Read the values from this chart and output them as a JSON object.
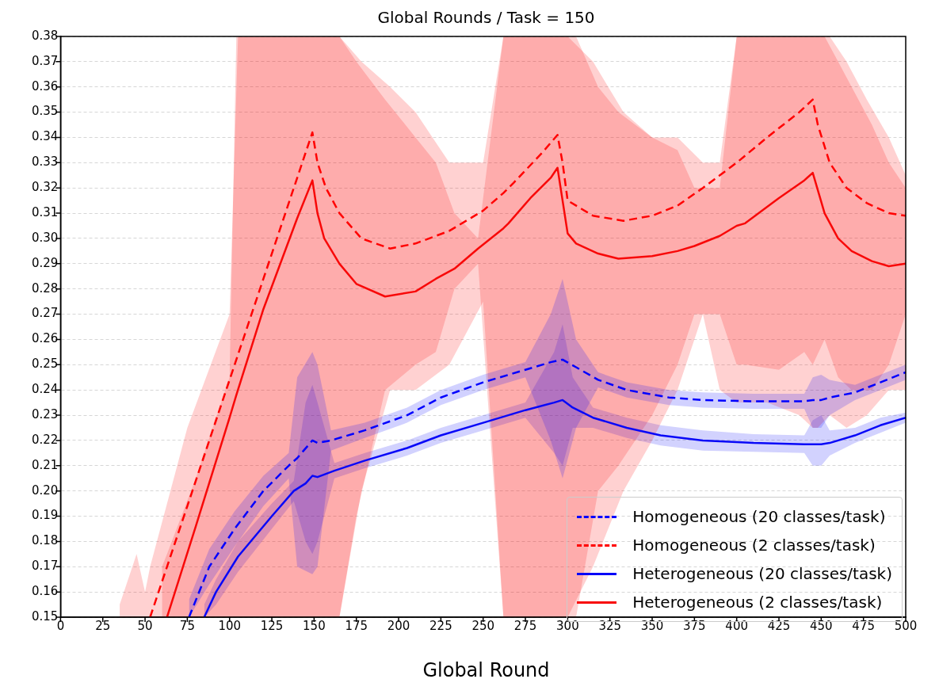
{
  "chart_data": {
    "type": "line",
    "title": "Global Rounds / Task = 150",
    "xlabel": "Global Round",
    "xlim": [
      0,
      500
    ],
    "xticks": [
      0,
      25,
      50,
      75,
      100,
      125,
      150,
      175,
      200,
      225,
      250,
      275,
      300,
      325,
      350,
      375,
      400,
      425,
      450,
      475,
      500
    ],
    "ylim": [
      0.15,
      0.38
    ],
    "yticks": [
      0.15,
      0.16,
      0.17,
      0.18,
      0.19,
      {
        "value": 0.2,
        "label": "0.20"
      },
      0.21,
      0.22,
      0.23,
      0.24,
      0.25,
      0.26,
      0.27,
      0.28,
      0.29,
      {
        "value": 0.3,
        "label": "0.30"
      },
      0.31,
      0.32,
      0.33,
      0.34,
      0.35,
      0.36,
      0.37,
      0.38
    ],
    "grid": "y",
    "legend": "bottom right",
    "marker": "none",
    "series": [
      {
        "name": "Homogeneous (20 classes/task)",
        "color": "#0000ff",
        "line_style": "dashed",
        "x": [
          76,
          88,
          103,
          120,
          135,
          140,
          149,
          152,
          160,
          180,
          205,
          225,
          250,
          275,
          290,
          297,
          305,
          318,
          335,
          360,
          380,
          410,
          440,
          445,
          450,
          455,
          470,
          485,
          500
        ],
        "values": [
          0.15,
          0.17,
          0.185,
          0.2,
          0.21,
          0.213,
          0.22,
          0.219,
          0.22,
          0.224,
          0.23,
          0.237,
          0.243,
          0.248,
          0.251,
          0.252,
          0.249,
          0.244,
          0.24,
          0.237,
          0.236,
          0.2355,
          0.2355,
          0.236,
          0.236,
          0.237,
          0.239,
          0.243,
          0.247
        ],
        "lower": [
          0.15,
          0.163,
          0.178,
          0.194,
          0.205,
          0.17,
          0.167,
          0.17,
          0.216,
          0.221,
          0.227,
          0.234,
          0.24,
          0.245,
          0.22,
          0.205,
          0.225,
          0.241,
          0.237,
          0.234,
          0.233,
          0.2325,
          0.2325,
          0.225,
          0.225,
          0.23,
          0.236,
          0.24,
          0.244
        ],
        "upper": [
          0.157,
          0.177,
          0.192,
          0.206,
          0.215,
          0.245,
          0.255,
          0.25,
          0.224,
          0.227,
          0.233,
          0.24,
          0.246,
          0.251,
          0.27,
          0.284,
          0.26,
          0.247,
          0.243,
          0.24,
          0.239,
          0.2385,
          0.2385,
          0.245,
          0.246,
          0.244,
          0.242,
          0.246,
          0.25
        ]
      },
      {
        "name": "Homogeneous (2 classes/task)",
        "color": "#ff0000",
        "line_style": "dashed",
        "x": [
          35,
          45,
          50,
          53,
          75,
          100,
          105,
          125,
          149,
          152,
          157,
          165,
          178,
          195,
          210,
          230,
          250,
          262,
          268,
          285,
          294,
          297,
          300,
          315,
          333,
          350,
          365,
          380,
          390,
          400,
          418,
          437,
          445,
          448,
          455,
          465,
          477,
          490,
          500
        ],
        "values": [
          null,
          null,
          null,
          0.15,
          0.194,
          0.244,
          0.254,
          0.294,
          0.342,
          0.33,
          0.32,
          0.31,
          0.3,
          0.296,
          0.298,
          0.303,
          0.311,
          0.318,
          0.322,
          0.334,
          0.341,
          0.33,
          0.315,
          0.309,
          0.307,
          0.309,
          0.313,
          0.32,
          0.325,
          0.33,
          0.34,
          0.35,
          0.355,
          0.345,
          0.33,
          0.32,
          0.314,
          0.31,
          0.309
        ],
        "lower": [
          0.15,
          0.15,
          0.15,
          0.15,
          0.15,
          0.15,
          0.15,
          0.15,
          0.15,
          0.15,
          0.15,
          0.15,
          0.2,
          0.24,
          0.24,
          0.25,
          0.275,
          0.15,
          0.15,
          0.15,
          0.15,
          0.15,
          0.15,
          0.17,
          0.2,
          0.22,
          0.24,
          0.27,
          0.24,
          0.235,
          0.235,
          0.23,
          0.225,
          0.225,
          0.23,
          0.225,
          0.23,
          0.24,
          0.24
        ],
        "upper": [
          0.155,
          0.175,
          0.16,
          0.17,
          0.225,
          0.27,
          0.38,
          0.38,
          0.38,
          0.38,
          0.38,
          0.38,
          0.37,
          0.36,
          0.35,
          0.33,
          0.33,
          0.38,
          0.38,
          0.38,
          0.38,
          0.38,
          0.38,
          0.37,
          0.35,
          0.34,
          0.34,
          0.33,
          0.33,
          0.38,
          0.38,
          0.38,
          0.38,
          0.38,
          0.38,
          0.37,
          0.355,
          0.34,
          0.325
        ]
      },
      {
        "name": "Heterogeneous (20 classes/task)",
        "color": "#0808f8",
        "line_style": "solid",
        "x": [
          85,
          92,
          105,
          125,
          138,
          145,
          149,
          152,
          162,
          180,
          205,
          225,
          250,
          275,
          292,
          297,
          303,
          315,
          335,
          355,
          380,
          410,
          440,
          445,
          450,
          455,
          470,
          485,
          500
        ],
        "values": [
          0.15,
          0.16,
          0.174,
          0.19,
          0.2,
          0.203,
          0.206,
          0.2055,
          0.208,
          0.212,
          0.217,
          0.222,
          0.227,
          0.232,
          0.235,
          0.236,
          0.233,
          0.229,
          0.225,
          0.222,
          0.22,
          0.219,
          0.2185,
          0.2185,
          0.2185,
          0.219,
          0.222,
          0.226,
          0.229
        ],
        "lower": [
          0.15,
          0.155,
          0.168,
          0.185,
          0.196,
          0.18,
          0.175,
          0.18,
          0.205,
          0.209,
          0.214,
          0.219,
          0.224,
          0.229,
          0.215,
          0.21,
          0.225,
          0.225,
          0.221,
          0.218,
          0.216,
          0.2155,
          0.215,
          0.21,
          0.21,
          0.214,
          0.219,
          0.223,
          0.227
        ],
        "upper": [
          0.155,
          0.165,
          0.18,
          0.195,
          0.204,
          0.235,
          0.242,
          0.235,
          0.211,
          0.215,
          0.22,
          0.225,
          0.23,
          0.235,
          0.255,
          0.266,
          0.245,
          0.233,
          0.229,
          0.226,
          0.224,
          0.2225,
          0.222,
          0.228,
          0.23,
          0.224,
          0.225,
          0.229,
          0.231
        ]
      },
      {
        "name": "Heterogeneous (2 classes/task)",
        "color": "#f80808",
        "line_style": "solid",
        "x": [
          60,
          63,
          80,
          100,
          104,
          120,
          140,
          149,
          152,
          156,
          165,
          175,
          192,
          210,
          222,
          233,
          247,
          262,
          265,
          278,
          290,
          294,
          297,
          300,
          305,
          318,
          330,
          350,
          365,
          375,
          390,
          400,
          405,
          425,
          440,
          445,
          452,
          460,
          468,
          480,
          490,
          500
        ],
        "values": [
          null,
          0.15,
          0.186,
          0.229,
          0.238,
          0.272,
          0.308,
          0.323,
          0.31,
          0.3,
          0.29,
          0.282,
          0.277,
          0.279,
          0.284,
          0.288,
          0.296,
          0.304,
          0.306,
          0.316,
          0.324,
          0.328,
          0.315,
          0.302,
          0.298,
          0.294,
          0.292,
          0.293,
          0.295,
          0.297,
          0.301,
          0.305,
          0.306,
          0.316,
          0.323,
          0.326,
          0.31,
          0.3,
          0.295,
          0.291,
          0.289,
          0.29
        ],
        "lower": [
          0.15,
          0.15,
          0.15,
          0.15,
          0.15,
          0.15,
          0.15,
          0.15,
          0.15,
          0.15,
          0.15,
          0.19,
          0.24,
          0.25,
          0.255,
          0.28,
          0.29,
          0.15,
          0.15,
          0.15,
          0.15,
          0.15,
          0.15,
          0.15,
          0.15,
          0.2,
          0.21,
          0.23,
          0.25,
          0.27,
          0.27,
          0.25,
          0.25,
          0.248,
          0.255,
          0.25,
          0.26,
          0.245,
          0.24,
          0.24,
          0.25,
          0.27
        ],
        "upper": [
          0.17,
          0.175,
          0.205,
          0.245,
          0.38,
          0.38,
          0.38,
          0.38,
          0.38,
          0.38,
          0.38,
          0.37,
          0.355,
          0.34,
          0.33,
          0.31,
          0.3,
          0.38,
          0.38,
          0.38,
          0.38,
          0.38,
          0.38,
          0.38,
          0.38,
          0.36,
          0.35,
          0.34,
          0.335,
          0.32,
          0.32,
          0.38,
          0.38,
          0.38,
          0.38,
          0.38,
          0.38,
          0.37,
          0.36,
          0.345,
          0.33,
          0.32
        ]
      }
    ]
  }
}
